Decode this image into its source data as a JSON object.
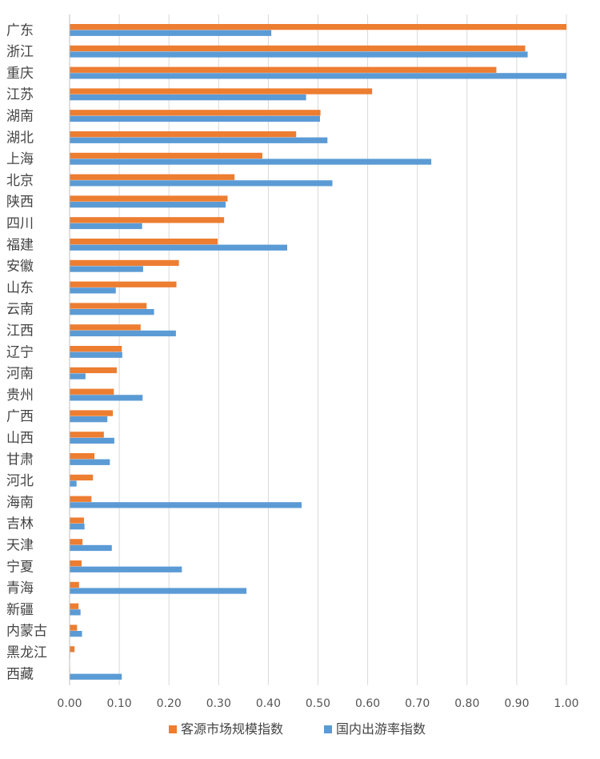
{
  "chart_data": {
    "type": "bar",
    "orientation": "horizontal",
    "title": "",
    "xlabel": "",
    "ylabel": "",
    "xlim": [
      0,
      1
    ],
    "x_ticks": [
      "0.00",
      "0.10",
      "0.20",
      "0.30",
      "0.40",
      "0.50",
      "0.60",
      "0.70",
      "0.80",
      "0.90",
      "1.00"
    ],
    "grid": true,
    "legend_position": "bottom",
    "categories": [
      "广东",
      "浙江",
      "重庆",
      "江苏",
      "湖南",
      "湖北",
      "上海",
      "北京",
      "陕西",
      "四川",
      "福建",
      "安徽",
      "山东",
      "云南",
      "江西",
      "辽宁",
      "河南",
      "贵州",
      "广西",
      "山西",
      "甘肃",
      "河北",
      "海南",
      "吉林",
      "天津",
      "宁夏",
      "青海",
      "新疆",
      "内蒙古",
      "黑龙江",
      "西藏"
    ],
    "series": [
      {
        "name": "客源市场规模指数",
        "color": "#ED7D31",
        "values": [
          1.0,
          0.917,
          0.859,
          0.609,
          0.505,
          0.456,
          0.388,
          0.332,
          0.318,
          0.311,
          0.298,
          0.22,
          0.215,
          0.155,
          0.143,
          0.105,
          0.095,
          0.089,
          0.087,
          0.069,
          0.05,
          0.047,
          0.044,
          0.029,
          0.026,
          0.024,
          0.019,
          0.018,
          0.015,
          0.01,
          0.001
        ]
      },
      {
        "name": "国内出游率指数",
        "color": "#5B9BD5",
        "values": [
          0.406,
          0.922,
          1.0,
          0.476,
          0.504,
          0.519,
          0.728,
          0.529,
          0.314,
          0.146,
          0.438,
          0.148,
          0.093,
          0.17,
          0.214,
          0.106,
          0.032,
          0.147,
          0.076,
          0.09,
          0.081,
          0.014,
          0.467,
          0.03,
          0.085,
          0.226,
          0.356,
          0.022,
          0.025,
          0.001,
          0.105
        ]
      }
    ]
  }
}
